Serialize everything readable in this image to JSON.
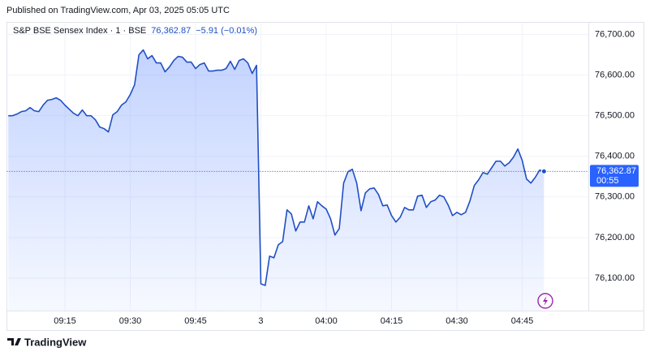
{
  "chart_data": {
    "type": "area",
    "published": "Published on TradingView.com, Apr 03, 2025 05:05 UTC",
    "source": "TradingView",
    "legend_change": "−5.91 (−0.01%)",
    "last_price": 76362.87,
    "last_price_label": "76,362.87",
    "countdown": "00:55",
    "grid": true,
    "categories": [
      null,
      null,
      null,
      null,
      null,
      null,
      null,
      null,
      null,
      null,
      null,
      null,
      null,
      "09:15",
      null,
      null,
      null,
      null,
      null,
      null,
      null,
      null,
      null,
      null,
      null,
      null,
      null,
      null,
      "09:30",
      null,
      null,
      null,
      null,
      null,
      null,
      null,
      null,
      null,
      null,
      null,
      null,
      null,
      null,
      "09:45",
      null,
      null,
      null,
      null,
      null,
      null,
      null,
      null,
      null,
      null,
      null,
      null,
      null,
      null,
      "3",
      null,
      null,
      null,
      null,
      null,
      null,
      null,
      null,
      null,
      null,
      null,
      null,
      null,
      null,
      "04:00",
      null,
      null,
      null,
      null,
      null,
      null,
      null,
      null,
      null,
      null,
      null,
      null,
      null,
      null,
      "04:15",
      null,
      null,
      null,
      null,
      null,
      null,
      null,
      null,
      null,
      null,
      null,
      null,
      null,
      null,
      "04:30",
      null,
      null,
      null,
      null,
      null,
      null,
      null,
      null,
      null,
      null,
      null,
      null,
      null,
      null,
      "04:45",
      null,
      null,
      null,
      null,
      null
    ],
    "series": [
      {
        "name": "S&P BSE Sensex Index · 1 · BSE",
        "color": "#1f4fc4",
        "values": [
          76500,
          76500,
          76504,
          76510,
          76512,
          76520,
          76512,
          76510,
          76526,
          76538,
          76540,
          76544,
          76538,
          76526,
          76516,
          76506,
          76500,
          76514,
          76500,
          76500,
          76490,
          76472,
          76468,
          76460,
          76502,
          76510,
          76526,
          76534,
          76552,
          76576,
          76650,
          76662,
          76640,
          76648,
          76630,
          76630,
          76608,
          76620,
          76636,
          76646,
          76644,
          76632,
          76632,
          76616,
          76626,
          76630,
          76610,
          76610,
          76612,
          76612,
          76616,
          76634,
          76614,
          76636,
          76640,
          76630,
          76604,
          76624,
          76086,
          76082,
          76154,
          76150,
          76182,
          76190,
          76268,
          76258,
          76216,
          76238,
          76238,
          76278,
          76246,
          76288,
          76278,
          76270,
          76246,
          76206,
          76222,
          76334,
          76362,
          76368,
          76334,
          76266,
          76310,
          76320,
          76322,
          76306,
          76278,
          76280,
          76254,
          76238,
          76250,
          76274,
          76268,
          76268,
          76302,
          76304,
          76274,
          76288,
          76292,
          76304,
          76300,
          76280,
          76254,
          76262,
          76256,
          76262,
          76290,
          76328,
          76342,
          76360,
          76356,
          76372,
          76388,
          76388,
          76376,
          76384,
          76398,
          76418,
          76390,
          76344,
          76334,
          76348,
          76366,
          76362.87
        ]
      }
    ],
    "ylim": [
      76020,
      76730
    ],
    "yticks": [
      {
        "value": 76100,
        "label": "76,100.00"
      },
      {
        "value": 76200,
        "label": "76,200.00"
      },
      {
        "value": 76300,
        "label": "76,300.00"
      },
      {
        "value": 76400,
        "label": "76,400.00"
      },
      {
        "value": 76500,
        "label": "76,500.00"
      },
      {
        "value": 76600,
        "label": "76,600.00"
      },
      {
        "value": 76700,
        "label": "76,700.00"
      }
    ]
  }
}
